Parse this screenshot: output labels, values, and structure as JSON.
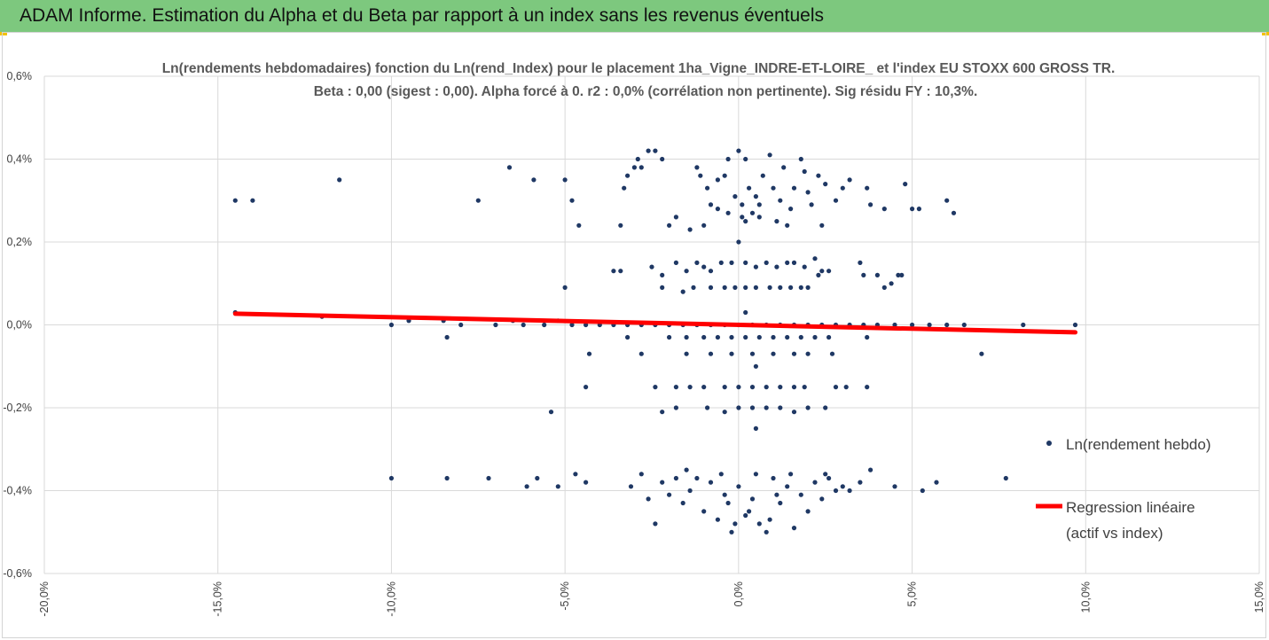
{
  "header": {
    "title": "ADAM Informe. Estimation du Alpha et du Beta par rapport à un index sans les revenus éventuels"
  },
  "colors": {
    "banner": "#7dc87e",
    "points": "#1f3864",
    "regression": "#ff0000",
    "grid": "#d9d9d9",
    "accent": "#f3c200"
  },
  "chart_data": {
    "type": "scatter",
    "title_line1": "Ln(rendements hebdomadaires) fonction du Ln(rend_Index) pour le placement 1ha_Vigne_INDRE-ET-LOIRE_ et l'index EU STOXX 600 GROSS TR.",
    "title_line2": "Beta : 0,00 (sigest : 0,00). Alpha forcé à 0. r2 : 0,0% (corrélation non pertinente). Sig résidu FY : 10,3%.",
    "xlim": [
      -0.2,
      0.15
    ],
    "ylim": [
      -0.006,
      0.006
    ],
    "x_ticks": [
      -0.2,
      -0.15,
      -0.1,
      -0.05,
      0.0,
      0.05,
      0.1,
      0.15
    ],
    "x_tick_labels": [
      "-20,0%",
      "-15,0%",
      "-10,0%",
      "-5,0%",
      "0,0%",
      "5,0%",
      "10,0%",
      "15,0%"
    ],
    "y_ticks": [
      0.006,
      0.004,
      0.002,
      0.0,
      -0.002,
      -0.004,
      -0.006
    ],
    "y_tick_labels": [
      "0,6%",
      "0,4%",
      "0,2%",
      "0,0%",
      "-0,2%",
      "-0,4%",
      "-0,6%"
    ],
    "grid": "vertical-and-horizontal",
    "legend_placement": "right",
    "series": [
      {
        "name": "Ln(rendement hebdo)",
        "type": "scatter",
        "points": [
          [
            -0.145,
            0.003
          ],
          [
            -0.14,
            0.003
          ],
          [
            -0.115,
            0.0035
          ],
          [
            -0.075,
            0.003
          ],
          [
            -0.066,
            0.0038
          ],
          [
            -0.059,
            0.0035
          ],
          [
            -0.05,
            0.0035
          ],
          [
            -0.048,
            0.003
          ],
          [
            -0.046,
            0.0024
          ],
          [
            -0.033,
            0.0033
          ],
          [
            -0.032,
            0.0036
          ],
          [
            -0.03,
            0.0038
          ],
          [
            -0.029,
            0.004
          ],
          [
            -0.028,
            0.0038
          ],
          [
            -0.026,
            0.0042
          ],
          [
            -0.024,
            0.0042
          ],
          [
            -0.022,
            0.004
          ],
          [
            -0.02,
            0.0024
          ],
          [
            -0.034,
            0.0024
          ],
          [
            -0.018,
            0.0026
          ],
          [
            -0.014,
            0.0023
          ],
          [
            -0.012,
            0.0038
          ],
          [
            -0.011,
            0.0036
          ],
          [
            -0.009,
            0.0033
          ],
          [
            -0.008,
            0.0029
          ],
          [
            -0.006,
            0.0035
          ],
          [
            -0.004,
            0.0036
          ],
          [
            -0.003,
            0.004
          ],
          [
            0.0,
            0.0042
          ],
          [
            0.001,
            0.0029
          ],
          [
            0.002,
            0.004
          ],
          [
            0.005,
            0.0031
          ],
          [
            0.006,
            0.0026
          ],
          [
            0.007,
            0.0036
          ],
          [
            0.009,
            0.0041
          ],
          [
            0.01,
            0.0033
          ],
          [
            0.012,
            0.003
          ],
          [
            0.013,
            0.0038
          ],
          [
            0.015,
            0.0028
          ],
          [
            0.016,
            0.0033
          ],
          [
            0.018,
            0.004
          ],
          [
            0.019,
            0.0037
          ],
          [
            0.02,
            0.0032
          ],
          [
            0.021,
            0.0029
          ],
          [
            0.023,
            0.0036
          ],
          [
            0.025,
            0.0034
          ],
          [
            0.028,
            0.003
          ],
          [
            0.03,
            0.0033
          ],
          [
            0.032,
            0.0035
          ],
          [
            0.037,
            0.0033
          ],
          [
            0.038,
            0.0029
          ],
          [
            0.042,
            0.0028
          ],
          [
            0.048,
            0.0034
          ],
          [
            0.05,
            0.0028
          ],
          [
            0.052,
            0.0028
          ],
          [
            0.06,
            0.003
          ],
          [
            0.062,
            0.0027
          ],
          [
            -0.01,
            0.0024
          ],
          [
            -0.006,
            0.0028
          ],
          [
            -0.003,
            0.0027
          ],
          [
            0.002,
            0.0025
          ],
          [
            0.004,
            0.0027
          ],
          [
            0.011,
            0.0025
          ],
          [
            0.014,
            0.0024
          ],
          [
            0.024,
            0.0024
          ],
          [
            0.0,
            0.002
          ],
          [
            -0.001,
            0.0031
          ],
          [
            0.001,
            0.0026
          ],
          [
            0.003,
            0.0033
          ],
          [
            0.006,
            0.0029
          ],
          [
            -0.036,
            0.0013
          ],
          [
            -0.034,
            0.0013
          ],
          [
            -0.025,
            0.0014
          ],
          [
            -0.022,
            0.0012
          ],
          [
            -0.018,
            0.0015
          ],
          [
            -0.015,
            0.0013
          ],
          [
            -0.012,
            0.0015
          ],
          [
            -0.01,
            0.0014
          ],
          [
            -0.008,
            0.0013
          ],
          [
            -0.005,
            0.0015
          ],
          [
            -0.002,
            0.0015
          ],
          [
            0.002,
            0.0015
          ],
          [
            0.005,
            0.0014
          ],
          [
            0.008,
            0.0015
          ],
          [
            0.011,
            0.0014
          ],
          [
            0.014,
            0.0015
          ],
          [
            0.016,
            0.0015
          ],
          [
            0.019,
            0.0014
          ],
          [
            0.022,
            0.0016
          ],
          [
            0.024,
            0.0013
          ],
          [
            0.026,
            0.0013
          ],
          [
            0.035,
            0.0015
          ],
          [
            0.036,
            0.0012
          ],
          [
            0.04,
            0.0012
          ],
          [
            0.042,
            0.0009
          ],
          [
            0.044,
            0.001
          ],
          [
            0.046,
            0.0012
          ],
          [
            0.047,
            0.0012
          ],
          [
            -0.05,
            0.0009
          ],
          [
            -0.022,
            0.0009
          ],
          [
            -0.016,
            0.0008
          ],
          [
            -0.013,
            0.0009
          ],
          [
            -0.008,
            0.0009
          ],
          [
            -0.004,
            0.0009
          ],
          [
            -0.001,
            0.0009
          ],
          [
            0.002,
            0.0009
          ],
          [
            0.005,
            0.0009
          ],
          [
            0.009,
            0.0009
          ],
          [
            0.012,
            0.0009
          ],
          [
            0.015,
            0.0009
          ],
          [
            0.018,
            0.0009
          ],
          [
            0.02,
            0.0009
          ],
          [
            0.023,
            0.0012
          ],
          [
            -0.145,
            0.0003
          ],
          [
            -0.12,
            0.0002
          ],
          [
            -0.1,
            0.0
          ],
          [
            -0.095,
            0.0001
          ],
          [
            -0.085,
            0.0001
          ],
          [
            -0.08,
            0.0
          ],
          [
            -0.07,
            0.0
          ],
          [
            -0.065,
            0.0001
          ],
          [
            -0.062,
            0.0
          ],
          [
            -0.056,
            0.0
          ],
          [
            -0.052,
            0.0001
          ],
          [
            -0.048,
            0.0
          ],
          [
            -0.044,
            0.0
          ],
          [
            -0.04,
            0.0
          ],
          [
            -0.036,
            0.0
          ],
          [
            -0.032,
            0.0
          ],
          [
            -0.028,
            0.0
          ],
          [
            -0.024,
            0.0
          ],
          [
            -0.02,
            0.0
          ],
          [
            -0.016,
            0.0
          ],
          [
            -0.012,
            0.0
          ],
          [
            -0.008,
            0.0
          ],
          [
            -0.004,
            0.0
          ],
          [
            0.0,
            0.0
          ],
          [
            0.004,
            0.0
          ],
          [
            0.008,
            0.0
          ],
          [
            0.012,
            0.0
          ],
          [
            0.016,
            0.0
          ],
          [
            0.02,
            0.0
          ],
          [
            0.024,
            0.0
          ],
          [
            0.028,
            0.0
          ],
          [
            0.032,
            0.0
          ],
          [
            0.036,
            0.0
          ],
          [
            0.04,
            0.0
          ],
          [
            0.045,
            0.0
          ],
          [
            0.05,
            0.0
          ],
          [
            0.055,
            0.0
          ],
          [
            0.06,
            0.0
          ],
          [
            0.065,
            0.0
          ],
          [
            0.082,
            0.0
          ],
          [
            0.097,
            0.0
          ],
          [
            0.002,
            0.0003
          ],
          [
            -0.084,
            -0.0003
          ],
          [
            -0.032,
            -0.0003
          ],
          [
            -0.02,
            -0.0003
          ],
          [
            -0.015,
            -0.0003
          ],
          [
            -0.01,
            -0.0003
          ],
          [
            -0.006,
            -0.0003
          ],
          [
            -0.002,
            -0.0003
          ],
          [
            0.002,
            -0.0003
          ],
          [
            0.006,
            -0.0003
          ],
          [
            0.01,
            -0.0003
          ],
          [
            0.014,
            -0.0003
          ],
          [
            0.018,
            -0.0003
          ],
          [
            0.022,
            -0.0003
          ],
          [
            0.026,
            -0.0003
          ],
          [
            0.037,
            -0.0003
          ],
          [
            0.07,
            -0.0007
          ],
          [
            -0.043,
            -0.0007
          ],
          [
            -0.028,
            -0.0007
          ],
          [
            -0.015,
            -0.0007
          ],
          [
            -0.008,
            -0.0007
          ],
          [
            -0.002,
            -0.0007
          ],
          [
            0.004,
            -0.0007
          ],
          [
            0.01,
            -0.0007
          ],
          [
            0.016,
            -0.0007
          ],
          [
            0.02,
            -0.0007
          ],
          [
            0.027,
            -0.0007
          ],
          [
            0.005,
            -0.001
          ],
          [
            -0.044,
            -0.0015
          ],
          [
            -0.024,
            -0.0015
          ],
          [
            -0.018,
            -0.0015
          ],
          [
            -0.014,
            -0.0015
          ],
          [
            -0.01,
            -0.0015
          ],
          [
            -0.004,
            -0.0015
          ],
          [
            0.0,
            -0.0015
          ],
          [
            0.004,
            -0.0015
          ],
          [
            0.008,
            -0.0015
          ],
          [
            0.012,
            -0.0015
          ],
          [
            0.016,
            -0.0015
          ],
          [
            0.019,
            -0.0015
          ],
          [
            0.028,
            -0.0015
          ],
          [
            0.031,
            -0.0015
          ],
          [
            0.037,
            -0.0015
          ],
          [
            -0.054,
            -0.0021
          ],
          [
            -0.022,
            -0.0021
          ],
          [
            -0.018,
            -0.002
          ],
          [
            -0.009,
            -0.002
          ],
          [
            -0.004,
            -0.0021
          ],
          [
            0.0,
            -0.002
          ],
          [
            0.004,
            -0.002
          ],
          [
            0.008,
            -0.002
          ],
          [
            0.012,
            -0.002
          ],
          [
            0.016,
            -0.0021
          ],
          [
            0.02,
            -0.002
          ],
          [
            0.025,
            -0.002
          ],
          [
            0.005,
            -0.0025
          ],
          [
            -0.1,
            -0.0037
          ],
          [
            -0.084,
            -0.0037
          ],
          [
            -0.072,
            -0.0037
          ],
          [
            -0.061,
            -0.0039
          ],
          [
            -0.058,
            -0.0037
          ],
          [
            -0.052,
            -0.0039
          ],
          [
            -0.047,
            -0.0036
          ],
          [
            -0.044,
            -0.0038
          ],
          [
            -0.031,
            -0.0039
          ],
          [
            -0.028,
            -0.0036
          ],
          [
            -0.026,
            -0.0042
          ],
          [
            -0.024,
            -0.0048
          ],
          [
            -0.022,
            -0.0038
          ],
          [
            -0.02,
            -0.0041
          ],
          [
            -0.018,
            -0.0037
          ],
          [
            -0.016,
            -0.0043
          ],
          [
            -0.014,
            -0.004
          ],
          [
            -0.012,
            -0.0037
          ],
          [
            -0.01,
            -0.0045
          ],
          [
            -0.008,
            -0.0038
          ],
          [
            -0.006,
            -0.0047
          ],
          [
            -0.004,
            -0.0041
          ],
          [
            -0.002,
            -0.005
          ],
          [
            0.0,
            -0.0039
          ],
          [
            0.002,
            -0.0046
          ],
          [
            0.004,
            -0.0042
          ],
          [
            0.006,
            -0.0048
          ],
          [
            0.008,
            -0.005
          ],
          [
            0.01,
            -0.0037
          ],
          [
            0.012,
            -0.0043
          ],
          [
            0.014,
            -0.0039
          ],
          [
            0.016,
            -0.0049
          ],
          [
            0.018,
            -0.0041
          ],
          [
            0.02,
            -0.0045
          ],
          [
            0.022,
            -0.0038
          ],
          [
            0.024,
            -0.0042
          ],
          [
            0.026,
            -0.0037
          ],
          [
            0.028,
            -0.004
          ],
          [
            0.03,
            -0.0039
          ],
          [
            0.035,
            -0.0038
          ],
          [
            0.038,
            -0.0035
          ],
          [
            0.045,
            -0.0039
          ],
          [
            0.053,
            -0.004
          ],
          [
            0.057,
            -0.0038
          ],
          [
            0.077,
            -0.0037
          ],
          [
            -0.015,
            -0.0035
          ],
          [
            -0.005,
            -0.0036
          ],
          [
            0.005,
            -0.0036
          ],
          [
            0.015,
            -0.0036
          ],
          [
            0.025,
            -0.0036
          ],
          [
            0.032,
            -0.004
          ],
          [
            -0.003,
            -0.0043
          ],
          [
            0.003,
            -0.0045
          ],
          [
            0.009,
            -0.0047
          ],
          [
            -0.001,
            -0.0048
          ],
          [
            0.011,
            -0.0041
          ]
        ]
      },
      {
        "name": "Regression linéaire",
        "name_line2": "(actif vs index)",
        "type": "line",
        "points": [
          [
            -0.145,
            0.00027
          ],
          [
            0.097,
            -0.00018
          ]
        ]
      }
    ]
  }
}
